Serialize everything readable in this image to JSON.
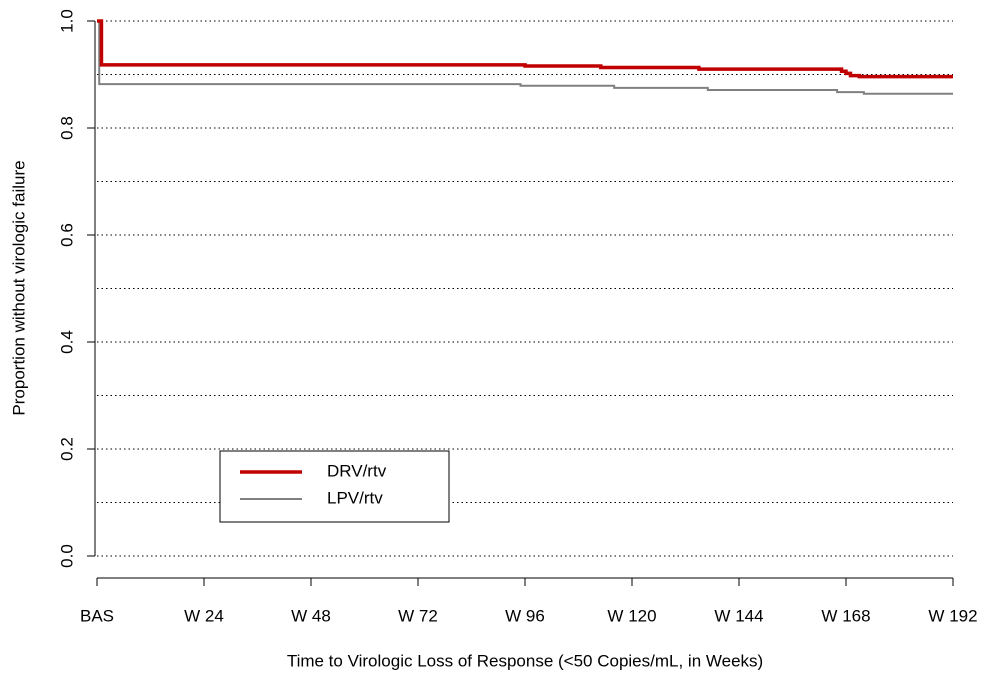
{
  "chart_data": {
    "type": "step",
    "xlabel": "Time to Virologic Loss of Response (<50 Copies/mL, in Weeks)",
    "ylabel": "Proportion without virologic failure",
    "xlim": [
      0,
      192
    ],
    "ylim": [
      0,
      1
    ],
    "xticks": [
      {
        "value": 0,
        "label": "BAS"
      },
      {
        "value": 24,
        "label": "W 24"
      },
      {
        "value": 48,
        "label": "W 48"
      },
      {
        "value": 72,
        "label": "W 72"
      },
      {
        "value": 96,
        "label": "W 96"
      },
      {
        "value": 120,
        "label": "W 120"
      },
      {
        "value": 144,
        "label": "W 144"
      },
      {
        "value": 168,
        "label": "W 168"
      },
      {
        "value": 192,
        "label": "W 192"
      }
    ],
    "yticks": [
      {
        "value": 0,
        "label": "0.0"
      },
      0.2,
      0.4,
      0.6,
      0.8,
      {
        "value": 1,
        "label": "1.0"
      }
    ],
    "grid": [
      0,
      0.1,
      0.2,
      0.3,
      0.4,
      0.5,
      0.6,
      0.7,
      0.8,
      0.9,
      1
    ],
    "legend": "lower left",
    "series": [
      {
        "name": "DRV/rtv",
        "color": "#c00000",
        "x": [
          0,
          1,
          96,
          113,
          135,
          167,
          168,
          169,
          171,
          192
        ],
        "values": [
          1,
          0.918,
          0.916,
          0.913,
          0.91,
          0.906,
          0.902,
          0.898,
          0.896,
          0.896
        ]
      },
      {
        "name": "LPV/rtv",
        "color": "#808080",
        "x": [
          0,
          0.5,
          95,
          116,
          137,
          166,
          172,
          192
        ],
        "values": [
          1,
          0.882,
          0.879,
          0.875,
          0.871,
          0.867,
          0.864,
          0.864
        ]
      }
    ]
  }
}
